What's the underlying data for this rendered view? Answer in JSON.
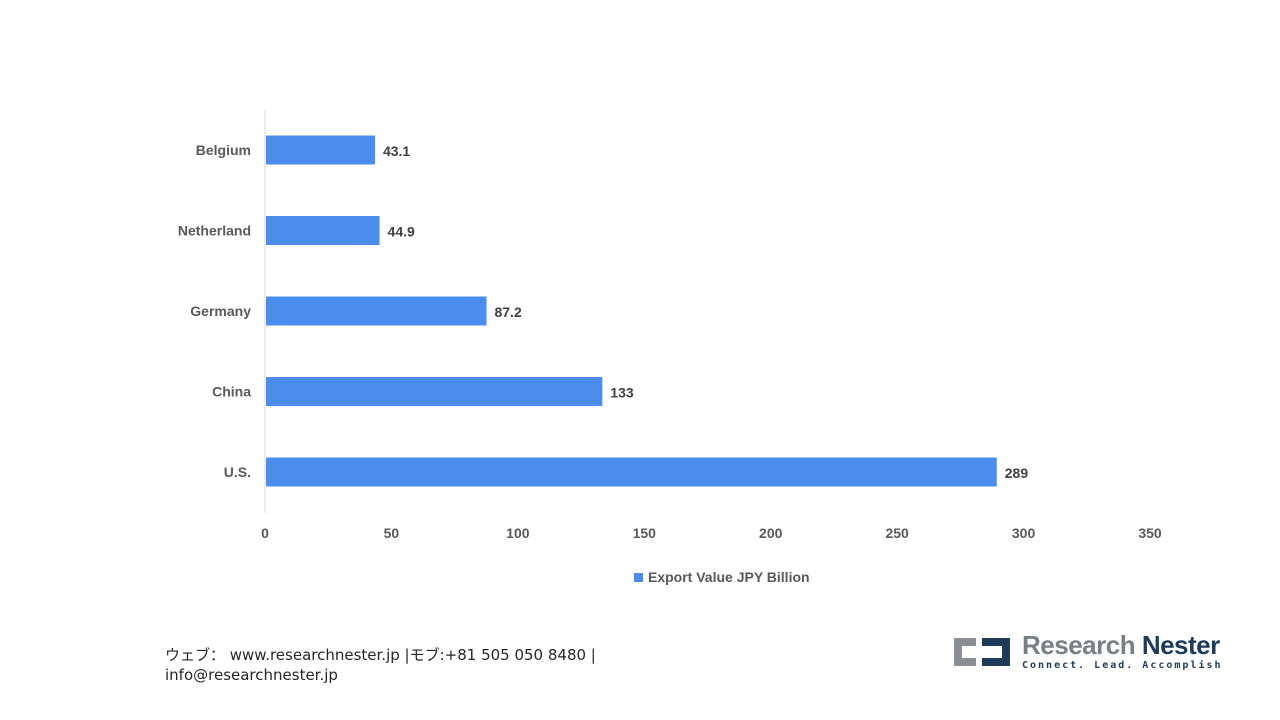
{
  "chart_data": {
    "type": "bar",
    "orientation": "horizontal",
    "categories": [
      "Belgium",
      "Netherland",
      "Germany",
      "China",
      "U.S."
    ],
    "series": [
      {
        "name": "Export Value JPY Billion",
        "values": [
          43.1,
          44.9,
          87.2,
          133,
          289
        ],
        "color": "#4a8ded"
      }
    ],
    "data_labels": [
      "43.1",
      "44.9",
      "87.2",
      "133",
      "289"
    ],
    "xlim": [
      0,
      350
    ],
    "xticks": [
      0,
      50,
      100,
      150,
      200,
      250,
      300,
      350
    ],
    "grid": false,
    "legend_position": "bottom"
  },
  "footer": {
    "line1": "ウェブ：  www.researchnester.jp  |モブ:+81 505 050 8480 |",
    "line2": "info@researchnester.jp"
  },
  "logo": {
    "word1": "Research",
    "word2": "Nester",
    "tagline": "Connect. Lead. Accomplish"
  }
}
